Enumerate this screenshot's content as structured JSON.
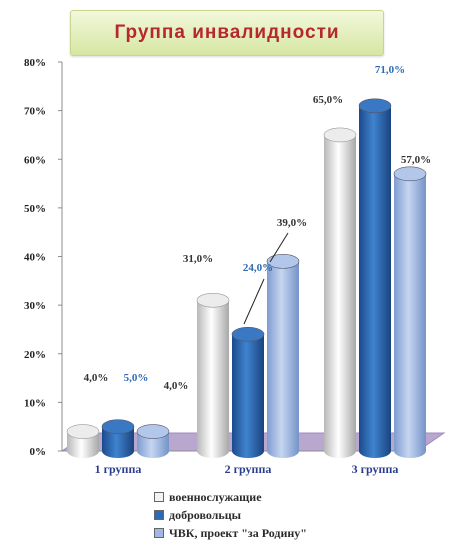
{
  "chart_data": {
    "type": "bar",
    "title": "Группа инвалидности",
    "categories": [
      "1 группа",
      "2 группа",
      "3 группа"
    ],
    "series": [
      {
        "name": "военнослужащие",
        "values": [
          4.0,
          31.0,
          65.0
        ],
        "labels": [
          "4,0%",
          "31,0%",
          "65,0%"
        ],
        "color": "#f2f2f2",
        "label_color": "#333333"
      },
      {
        "name": "добровольцы",
        "values": [
          5.0,
          24.0,
          71.0
        ],
        "labels": [
          "5,0%",
          "24,0%",
          "71,0%"
        ],
        "color": "#2e6ab3",
        "label_color": "#2e6ab3"
      },
      {
        "name": "ЧВК, проект \"за Родину\"",
        "values": [
          4.0,
          39.0,
          57.0
        ],
        "labels": [
          "4,0%",
          "39,0%",
          "57,0%"
        ],
        "color": "#9fb8e2",
        "label_color": "#333333"
      }
    ],
    "ylim": [
      0,
      80
    ],
    "yticks": [
      "0%",
      "10%",
      "20%",
      "30%",
      "40%",
      "50%",
      "60%",
      "70%",
      "80%"
    ],
    "grid": false,
    "legend_position": "bottom",
    "floor_color": "#b9a7cf",
    "category_label_color": "#2b3d8f"
  }
}
